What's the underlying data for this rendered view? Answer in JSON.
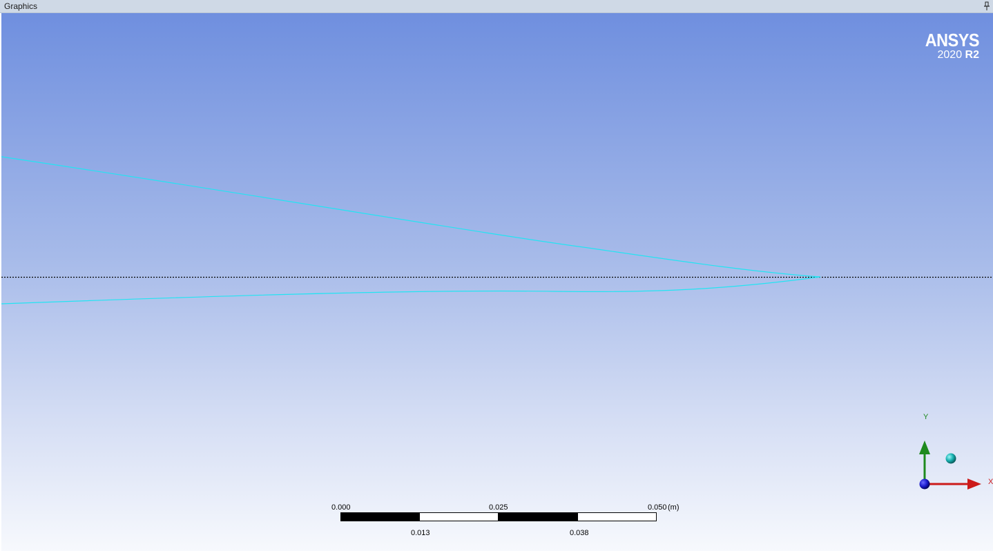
{
  "window": {
    "title": "Graphics",
    "pin_icon": "pin-icon"
  },
  "logo": {
    "brand": "ANSYS",
    "version_year": "2020",
    "version_release": "R2"
  },
  "scale": {
    "labels_top": [
      "0.000",
      "0.025",
      "0.050"
    ],
    "labels_bottom": [
      "0.013",
      "0.038"
    ],
    "unit": "(m)"
  },
  "triad": {
    "y_label": "Y",
    "x_label": "X",
    "icons": [
      "y-axis-arrow-icon",
      "x-axis-arrow-icon",
      "z-axis-origin-icon",
      "iso-view-ball-icon"
    ]
  },
  "colors": {
    "bg_top": "#6f8fdf",
    "bg_bottom": "#f7f9fd",
    "geometry_line": "#22e4f2",
    "symmetry_line": "#000000",
    "axis_y": "#1e8a1e",
    "axis_x": "#cc1a1a",
    "axis_z": "#1a1acc",
    "iso_ball": "#19b2b2"
  }
}
